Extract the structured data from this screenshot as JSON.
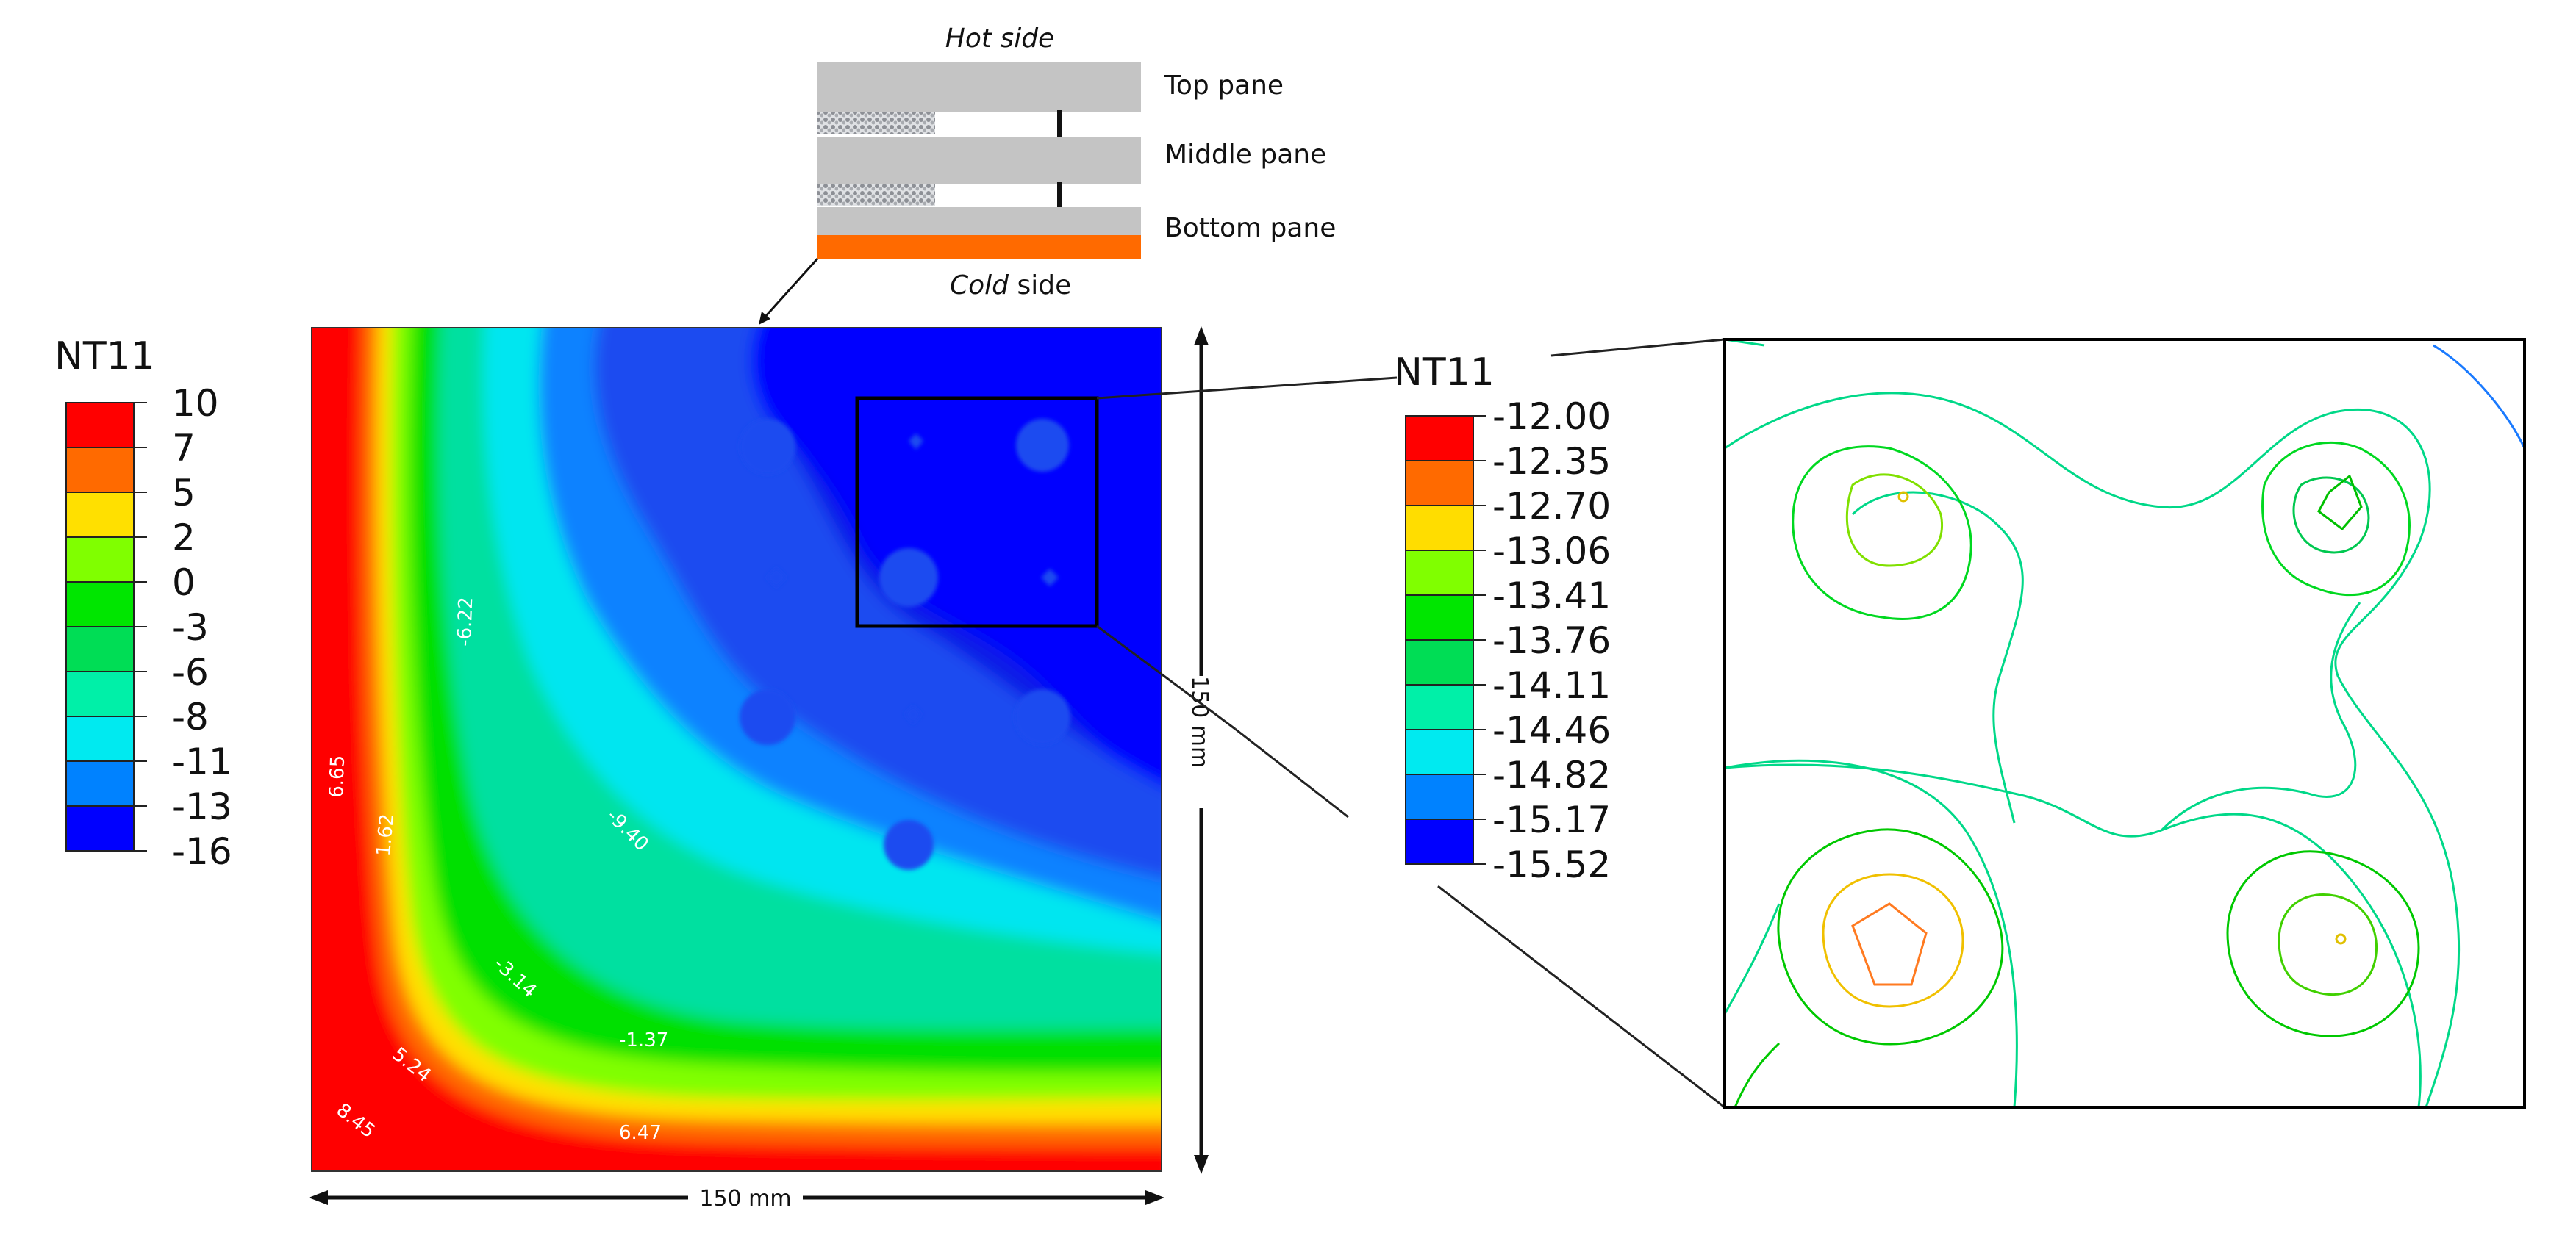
{
  "schematic": {
    "hot_side": "Hot side",
    "cold_word": "Cold",
    "cold_rest": " side",
    "layers": [
      "Top pane",
      "Middle pane",
      "Bottom pane"
    ]
  },
  "left_legend": {
    "title": "NT11",
    "labels": [
      "10",
      "7",
      "5",
      "2",
      "0",
      "-3",
      "-6",
      "-8",
      "-11",
      "-13",
      "-16"
    ],
    "colors": [
      "#ff0000",
      "#ff6a00",
      "#ffe000",
      "#80ff00",
      "#00e600",
      "#00dd55",
      "#00f0a8",
      "#00eaf0",
      "#0082ff",
      "#0000ff"
    ]
  },
  "contour_labels": [
    "-6.22",
    "-9.40",
    "6.65",
    "1.62",
    "-3.14",
    "-1.37",
    "5.24",
    "8.45",
    "6.47"
  ],
  "dimensions": {
    "vertical": "150 mm",
    "horizontal": "150 mm"
  },
  "right_legend": {
    "title": "NT11",
    "labels": [
      "-12.00",
      "-12.35",
      "-12.70",
      "-13.06",
      "-13.41",
      "-13.76",
      "-14.11",
      "-14.46",
      "-14.82",
      "-15.17",
      "-15.52"
    ],
    "colors": [
      "#ff0000",
      "#ff6a00",
      "#ffdd00",
      "#80ff00",
      "#00e600",
      "#00dd55",
      "#00f0a8",
      "#00eaf0",
      "#0082ff",
      "#0000ff"
    ]
  }
}
